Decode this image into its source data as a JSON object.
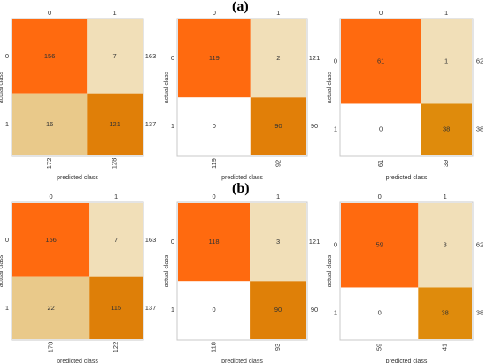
{
  "section_labels": [
    "(a)",
    "(b)"
  ],
  "chart_data": [
    {
      "type": "heatmap",
      "group": "(a)",
      "row_labels": [
        "0",
        "1"
      ],
      "col_labels": [
        "0",
        "1"
      ],
      "matrix": [
        [
          156,
          7
        ],
        [
          16,
          121
        ]
      ],
      "row_totals": [
        163,
        137
      ],
      "col_totals": [
        172,
        128
      ],
      "xlabel": "predicted class",
      "ylabel": "actual class",
      "colors": [
        [
          "#ff6a0f",
          "#f1dfb8"
        ],
        [
          "#e9c98a",
          "#e07f08"
        ]
      ]
    },
    {
      "type": "heatmap",
      "group": "(a)",
      "row_labels": [
        "0",
        "1"
      ],
      "col_labels": [
        "0",
        "1"
      ],
      "matrix": [
        [
          119,
          2
        ],
        [
          0,
          90
        ]
      ],
      "row_totals": [
        121,
        90
      ],
      "col_totals": [
        119,
        92
      ],
      "xlabel": "predicted class",
      "ylabel": "actual class",
      "colors": [
        [
          "#ff6a0f",
          "#f1dfb8"
        ],
        [
          "#ffffff",
          "#e17f08"
        ]
      ]
    },
    {
      "type": "heatmap",
      "group": "(a)",
      "row_labels": [
        "0",
        "1"
      ],
      "col_labels": [
        "0",
        "1"
      ],
      "matrix": [
        [
          61,
          1
        ],
        [
          0,
          38
        ]
      ],
      "row_totals": [
        62,
        38
      ],
      "col_totals": [
        61,
        39
      ],
      "xlabel": "predicted class",
      "ylabel": "actual class",
      "colors": [
        [
          "#ff6a0f",
          "#f1dfb8"
        ],
        [
          "#ffffff",
          "#df8b0c"
        ]
      ]
    },
    {
      "type": "heatmap",
      "group": "(b)",
      "row_labels": [
        "0",
        "1"
      ],
      "col_labels": [
        "0",
        "1"
      ],
      "matrix": [
        [
          156,
          7
        ],
        [
          22,
          115
        ]
      ],
      "row_totals": [
        163,
        137
      ],
      "col_totals": [
        178,
        122
      ],
      "xlabel": "predicted class",
      "ylabel": "actual class",
      "colors": [
        [
          "#ff6a0f",
          "#f1dfb8"
        ],
        [
          "#e9c98a",
          "#de7f08"
        ]
      ]
    },
    {
      "type": "heatmap",
      "group": "(b)",
      "row_labels": [
        "0",
        "1"
      ],
      "col_labels": [
        "0",
        "1"
      ],
      "matrix": [
        [
          118,
          3
        ],
        [
          0,
          90
        ]
      ],
      "row_totals": [
        121,
        90
      ],
      "col_totals": [
        118,
        93
      ],
      "xlabel": "predicted class",
      "ylabel": "actual class",
      "colors": [
        [
          "#ff6a0f",
          "#f1dfb8"
        ],
        [
          "#ffffff",
          "#df8008"
        ]
      ]
    },
    {
      "type": "heatmap",
      "group": "(b)",
      "row_labels": [
        "0",
        "1"
      ],
      "col_labels": [
        "0",
        "1"
      ],
      "matrix": [
        [
          59,
          3
        ],
        [
          0,
          38
        ]
      ],
      "row_totals": [
        62,
        38
      ],
      "col_totals": [
        59,
        41
      ],
      "xlabel": "predicted class",
      "ylabel": "actual class",
      "colors": [
        [
          "#ff6a0f",
          "#f1dfb8"
        ],
        [
          "#ffffff",
          "#df8b0c"
        ]
      ]
    }
  ]
}
